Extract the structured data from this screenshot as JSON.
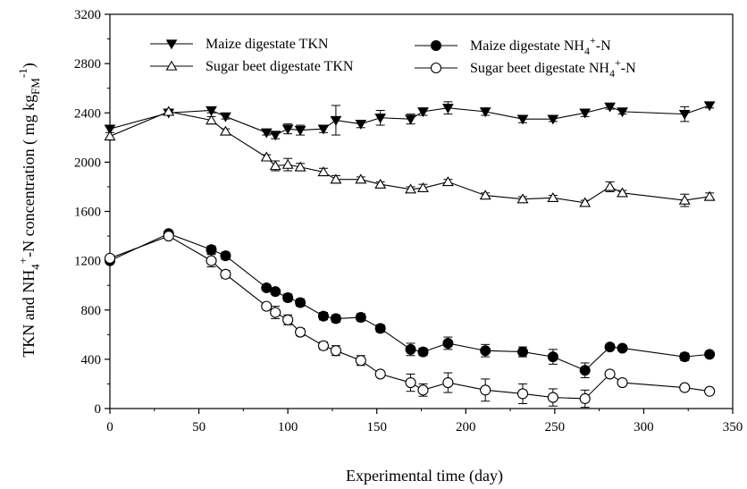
{
  "chart_data": {
    "type": "line",
    "xlabel": "Experimental time (day)",
    "ylabel_parts": {
      "a": "TKN and NH",
      "sub4": "4",
      "sup": "+",
      "b": "-N concentration ( mg kg",
      "subfm": "FM",
      "sup2": "-1",
      "c": ")"
    },
    "xlim": [
      0,
      350
    ],
    "ylim": [
      0,
      3200
    ],
    "xticks": [
      0,
      50,
      100,
      150,
      200,
      250,
      300,
      350
    ],
    "yticks": [
      0,
      400,
      800,
      1200,
      1600,
      2000,
      2400,
      2800,
      3200
    ],
    "legend": {
      "placement": "top",
      "maize_tkn": "Maize digestate TKN",
      "beet_tkn": "Sugar beet digestate TKN",
      "maize_nh4": {
        "a": "Maize digestate NH",
        "sub": "4",
        "sup": "+",
        "b": "-N"
      },
      "beet_nh4": {
        "a": "Sugar beet digestate NH",
        "sub": "4",
        "sup": "+",
        "b": "-N"
      }
    },
    "series": [
      {
        "key": "maize_tkn",
        "marker": "triangle-down-filled",
        "x": [
          0,
          33,
          57,
          65,
          88,
          93,
          100,
          107,
          120,
          127,
          141,
          152,
          169,
          176,
          190,
          211,
          232,
          249,
          267,
          281,
          288,
          323,
          337
        ],
        "y": [
          2270,
          2400,
          2420,
          2370,
          2240,
          2220,
          2270,
          2260,
          2270,
          2340,
          2310,
          2360,
          2350,
          2410,
          2440,
          2410,
          2350,
          2350,
          2400,
          2450,
          2410,
          2390,
          2460
        ],
        "err": [
          0,
          0,
          20,
          20,
          20,
          30,
          40,
          40,
          30,
          120,
          30,
          60,
          40,
          30,
          50,
          30,
          30,
          20,
          30,
          20,
          20,
          60,
          20
        ]
      },
      {
        "key": "beet_tkn",
        "marker": "triangle-up-open",
        "x": [
          0,
          33,
          57,
          65,
          88,
          93,
          100,
          107,
          120,
          127,
          141,
          152,
          169,
          176,
          190,
          211,
          232,
          249,
          267,
          281,
          288,
          323,
          337
        ],
        "y": [
          2210,
          2410,
          2340,
          2250,
          2040,
          1970,
          1980,
          1960,
          1920,
          1860,
          1860,
          1820,
          1780,
          1790,
          1840,
          1730,
          1700,
          1710,
          1670,
          1800,
          1750,
          1690,
          1720
        ],
        "err": [
          30,
          20,
          30,
          20,
          20,
          40,
          50,
          30,
          30,
          30,
          20,
          20,
          20,
          30,
          20,
          20,
          20,
          20,
          20,
          40,
          20,
          50,
          30
        ]
      },
      {
        "key": "maize_nh4",
        "marker": "circle-filled",
        "x": [
          0,
          33,
          57,
          65,
          88,
          93,
          100,
          107,
          120,
          127,
          141,
          152,
          169,
          176,
          190,
          211,
          232,
          249,
          267,
          281,
          288,
          323,
          337
        ],
        "y": [
          1200,
          1420,
          1290,
          1240,
          980,
          950,
          900,
          860,
          750,
          730,
          740,
          650,
          480,
          460,
          530,
          470,
          460,
          420,
          310,
          500,
          490,
          420,
          440
        ],
        "err": [
          20,
          20,
          30,
          30,
          20,
          20,
          30,
          30,
          30,
          30,
          30,
          30,
          50,
          30,
          50,
          50,
          40,
          60,
          60,
          20,
          20,
          30,
          20
        ]
      },
      {
        "key": "beet_nh4",
        "marker": "circle-open",
        "x": [
          0,
          33,
          57,
          65,
          88,
          93,
          100,
          107,
          120,
          127,
          141,
          152,
          169,
          176,
          190,
          211,
          232,
          249,
          267,
          281,
          288,
          323,
          337
        ],
        "y": [
          1220,
          1400,
          1200,
          1090,
          830,
          780,
          720,
          620,
          510,
          470,
          390,
          280,
          210,
          150,
          210,
          150,
          120,
          90,
          80,
          280,
          210,
          170,
          140
        ],
        "err": [
          20,
          20,
          50,
          30,
          20,
          50,
          40,
          30,
          30,
          40,
          40,
          20,
          70,
          50,
          80,
          90,
          80,
          70,
          70,
          20,
          20,
          20,
          20
        ]
      }
    ]
  }
}
